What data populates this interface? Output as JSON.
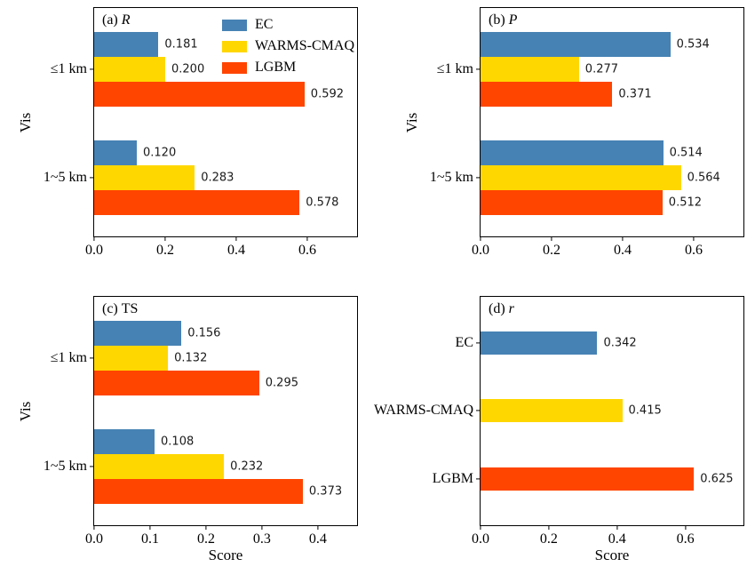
{
  "figure": {
    "background": "#ffffff",
    "series_colors": {
      "EC": "#4682B4",
      "WARMS-CMAQ": "#FFD700",
      "LGBM": "#FF4500"
    },
    "legend": {
      "entries": [
        "EC",
        "WARMS-CMAQ",
        "LGBM"
      ],
      "position": "upper-right-inside-panel-a",
      "frame": false
    }
  },
  "chart_data": [
    {
      "id": "a",
      "type": "bar",
      "orientation": "horizontal",
      "title_prefix": "(a)",
      "metric": "R",
      "metric_italic": true,
      "ylabel": "Vis",
      "xlabel": "",
      "xmax": 0.74,
      "xtick_values": [
        0,
        0.2,
        0.4,
        0.6
      ],
      "xtick_labels": [
        "0.0",
        "0.2",
        "0.4",
        "0.6"
      ],
      "categories": [
        "≤1 km",
        "1~5 km"
      ],
      "series": [
        {
          "name": "EC",
          "values": [
            0.181,
            0.12
          ],
          "labels": [
            "0.181",
            "0.120"
          ]
        },
        {
          "name": "WARMS-CMAQ",
          "values": [
            0.2,
            0.283
          ],
          "labels": [
            "0.200",
            "0.283"
          ]
        },
        {
          "name": "LGBM",
          "values": [
            0.592,
            0.578
          ],
          "labels": [
            "0.592",
            "0.578"
          ]
        }
      ]
    },
    {
      "id": "b",
      "type": "bar",
      "orientation": "horizontal",
      "title_prefix": "(b)",
      "metric": "P",
      "metric_italic": true,
      "ylabel": "Vis",
      "xlabel": "",
      "xmax": 0.74,
      "xtick_values": [
        0,
        0.2,
        0.4,
        0.6
      ],
      "xtick_labels": [
        "0.0",
        "0.2",
        "0.4",
        "0.6"
      ],
      "categories": [
        "≤1 km",
        "1~5 km"
      ],
      "series": [
        {
          "name": "EC",
          "values": [
            0.534,
            0.514
          ],
          "labels": [
            "0.534",
            "0.514"
          ]
        },
        {
          "name": "WARMS-CMAQ",
          "values": [
            0.277,
            0.564
          ],
          "labels": [
            "0.277",
            "0.564"
          ]
        },
        {
          "name": "LGBM",
          "values": [
            0.371,
            0.512
          ],
          "labels": [
            "0.371",
            "0.512"
          ]
        }
      ]
    },
    {
      "id": "c",
      "type": "bar",
      "orientation": "horizontal",
      "title_prefix": "(c)",
      "metric": "TS",
      "metric_italic": false,
      "ylabel": "Vis",
      "xlabel": "Score",
      "xmax": 0.47,
      "xtick_values": [
        0,
        0.1,
        0.2,
        0.3,
        0.4
      ],
      "xtick_labels": [
        "0.0",
        "0.1",
        "0.2",
        "0.3",
        "0.4"
      ],
      "categories": [
        "≤1 km",
        "1~5 km"
      ],
      "series": [
        {
          "name": "EC",
          "values": [
            0.156,
            0.108
          ],
          "labels": [
            "0.156",
            "0.108"
          ]
        },
        {
          "name": "WARMS-CMAQ",
          "values": [
            0.132,
            0.232
          ],
          "labels": [
            "0.132",
            "0.232"
          ]
        },
        {
          "name": "LGBM",
          "values": [
            0.295,
            0.373
          ],
          "labels": [
            "0.295",
            "0.373"
          ]
        }
      ]
    },
    {
      "id": "d",
      "type": "bar",
      "orientation": "horizontal",
      "title_prefix": "(d)",
      "metric": "r",
      "metric_italic": true,
      "ylabel": "",
      "xlabel": "Score",
      "xmax": 0.77,
      "xtick_values": [
        0,
        0.2,
        0.4,
        0.6
      ],
      "xtick_labels": [
        "0.0",
        "0.2",
        "0.4",
        "0.6"
      ],
      "categories": [
        "EC",
        "WARMS-CMAQ",
        "LGBM"
      ],
      "values": [
        0.342,
        0.415,
        0.625
      ],
      "labels": [
        "0.342",
        "0.415",
        "0.625"
      ]
    }
  ]
}
